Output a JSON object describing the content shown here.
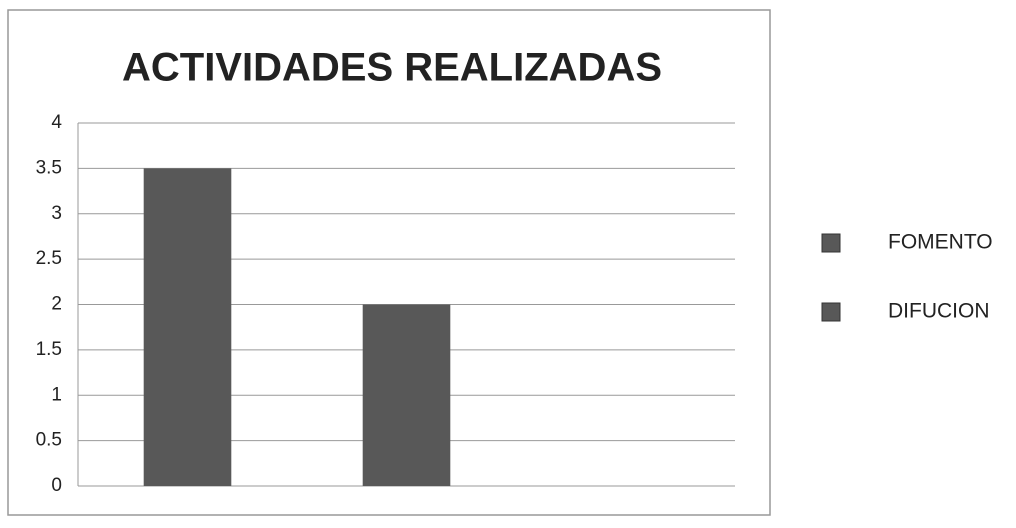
{
  "chart_data": {
    "type": "bar",
    "title": "ACTIVIDADES REALIZADAS",
    "categories": [
      null,
      null,
      null
    ],
    "series": [
      {
        "name": "FOMENTO",
        "color": "#585858",
        "values": [
          3.5,
          null,
          null
        ]
      },
      {
        "name": "DIFUCION",
        "color": "#585858",
        "values": [
          null,
          2,
          null
        ]
      }
    ],
    "ylim": [
      0,
      4
    ],
    "yticks": [
      0,
      0.5,
      1,
      1.5,
      2,
      2.5,
      3,
      3.5,
      4
    ],
    "grid": true,
    "legend": "right"
  }
}
